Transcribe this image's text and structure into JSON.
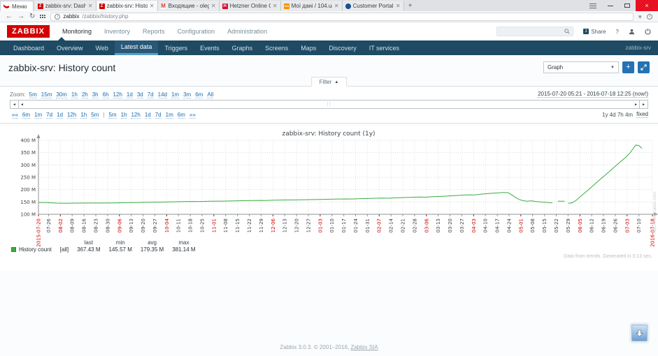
{
  "browser": {
    "menu_chip": "Меню",
    "tabs": [
      {
        "title": "zabbix-srv: Dashboard",
        "close": "✕"
      },
      {
        "title": "zabbix-srv: History [refresh",
        "close": "✕"
      },
      {
        "title": "Входящие - oleg.mch0@gm",
        "close": "✕"
      },
      {
        "title": "Hetzner Online GmbH - R",
        "close": "✕"
      },
      {
        "title": "Мої дані / 104.ua",
        "close": "✕"
      },
      {
        "title": "Customer Portal by LeaseW",
        "close": "✕"
      }
    ],
    "new_tab": "+",
    "back": "←",
    "forward": "→",
    "reload": "↻",
    "url_host": "zabbix",
    "url_path": "/zabbix/history.php",
    "close_window": "×"
  },
  "header": {
    "logo": "ZABBIX",
    "menu": [
      "Monitoring",
      "Inventory",
      "Reports",
      "Configuration",
      "Administration"
    ],
    "active_menu": "Monitoring",
    "share_label": "Share",
    "share_glyph": "z",
    "help_label": "?"
  },
  "subnav": {
    "items": [
      "Dashboard",
      "Overview",
      "Web",
      "Latest data",
      "Triggers",
      "Events",
      "Graphs",
      "Screens",
      "Maps",
      "Discovery",
      "IT services"
    ],
    "active_item": "Latest data",
    "host": "zabbix-srv"
  },
  "page": {
    "title": "zabbix-srv: History count",
    "view_select_value": "Graph",
    "add_button": "+",
    "filter_label": "Filter",
    "filter_caret": "▲"
  },
  "timebar": {
    "zoom_label": "Zoom:",
    "zoom_links": [
      "5m",
      "15m",
      "30m",
      "1h",
      "2h",
      "3h",
      "6h",
      "12h",
      "1d",
      "3d",
      "7d",
      "14d",
      "1m",
      "3m",
      "6m",
      "All"
    ],
    "range_link": "2015-07-20 05:21 - 2016-07-18 12:25 (now!)",
    "nav_left": [
      "««",
      "6m",
      "1m",
      "7d",
      "1d",
      "12h",
      "1h",
      "5m"
    ],
    "separator": "|",
    "nav_right": [
      "5m",
      "1h",
      "12h",
      "1d",
      "7d",
      "1m",
      "6m",
      "»»"
    ],
    "duration": "1y 4d 7h 4m",
    "fixed_label": "fixed",
    "scroll_left_arrow": "◄",
    "scroll_right_arrow": "►"
  },
  "chart_data": {
    "type": "line",
    "title": "zabbix-srv: History count (1y)",
    "y_unit": "M",
    "ylim": [
      100,
      400
    ],
    "grid": true,
    "legend_position": "bottom-left",
    "yticks": [
      {
        "v": 100,
        "label": "100 M"
      },
      {
        "v": 150,
        "label": "150 M"
      },
      {
        "v": 200,
        "label": "200 M"
      },
      {
        "v": 250,
        "label": "250 M"
      },
      {
        "v": 300,
        "label": "300 M"
      },
      {
        "v": 350,
        "label": "350 M"
      },
      {
        "v": 400,
        "label": "400 M"
      }
    ],
    "x_start_label": {
      "p": 0,
      "label": "2015-07-20",
      "red": true
    },
    "x_end_label": {
      "p": 100,
      "label": "2016-07-18",
      "red": true
    },
    "xticks": [
      {
        "p": 1.65,
        "label": "07-26",
        "red": false
      },
      {
        "p": 3.57,
        "label": "08-02",
        "red": true
      },
      {
        "p": 5.49,
        "label": "08-09",
        "red": false
      },
      {
        "p": 7.42,
        "label": "08-16",
        "red": false
      },
      {
        "p": 9.34,
        "label": "08-23",
        "red": false
      },
      {
        "p": 11.26,
        "label": "08-30",
        "red": false
      },
      {
        "p": 13.19,
        "label": "09-06",
        "red": true
      },
      {
        "p": 15.11,
        "label": "09-13",
        "red": false
      },
      {
        "p": 17.03,
        "label": "09-20",
        "red": false
      },
      {
        "p": 18.96,
        "label": "09-27",
        "red": false
      },
      {
        "p": 20.88,
        "label": "10-04",
        "red": true
      },
      {
        "p": 22.8,
        "label": "10-11",
        "red": false
      },
      {
        "p": 24.73,
        "label": "10-18",
        "red": false
      },
      {
        "p": 26.65,
        "label": "10-25",
        "red": false
      },
      {
        "p": 28.57,
        "label": "11-01",
        "red": true
      },
      {
        "p": 30.49,
        "label": "11-08",
        "red": false
      },
      {
        "p": 32.42,
        "label": "11-15",
        "red": false
      },
      {
        "p": 34.34,
        "label": "11-22",
        "red": false
      },
      {
        "p": 36.26,
        "label": "11-29",
        "red": false
      },
      {
        "p": 38.19,
        "label": "12-06",
        "red": true
      },
      {
        "p": 40.11,
        "label": "12-13",
        "red": false
      },
      {
        "p": 42.03,
        "label": "12-20",
        "red": false
      },
      {
        "p": 43.96,
        "label": "12-27",
        "red": false
      },
      {
        "p": 45.88,
        "label": "01-03",
        "red": true
      },
      {
        "p": 47.8,
        "label": "01-10",
        "red": false
      },
      {
        "p": 49.73,
        "label": "01-17",
        "red": false
      },
      {
        "p": 51.65,
        "label": "01-24",
        "red": false
      },
      {
        "p": 53.57,
        "label": "01-31",
        "red": false
      },
      {
        "p": 55.49,
        "label": "02-07",
        "red": true
      },
      {
        "p": 57.42,
        "label": "02-14",
        "red": false
      },
      {
        "p": 59.34,
        "label": "02-21",
        "red": false
      },
      {
        "p": 61.26,
        "label": "02-28",
        "red": false
      },
      {
        "p": 63.19,
        "label": "03-06",
        "red": true
      },
      {
        "p": 65.11,
        "label": "03-13",
        "red": false
      },
      {
        "p": 67.03,
        "label": "03-20",
        "red": false
      },
      {
        "p": 68.96,
        "label": "03-27",
        "red": false
      },
      {
        "p": 70.88,
        "label": "04-03",
        "red": true
      },
      {
        "p": 72.8,
        "label": "04-10",
        "red": false
      },
      {
        "p": 74.73,
        "label": "04-17",
        "red": false
      },
      {
        "p": 76.65,
        "label": "04-24",
        "red": false
      },
      {
        "p": 78.57,
        "label": "05-01",
        "red": true
      },
      {
        "p": 80.49,
        "label": "05-08",
        "red": false
      },
      {
        "p": 82.42,
        "label": "05-15",
        "red": false
      },
      {
        "p": 84.34,
        "label": "05-22",
        "red": false
      },
      {
        "p": 86.26,
        "label": "05-29",
        "red": false
      },
      {
        "p": 88.19,
        "label": "06-05",
        "red": true
      },
      {
        "p": 90.11,
        "label": "06-12",
        "red": false
      },
      {
        "p": 92.03,
        "label": "06-19",
        "red": false
      },
      {
        "p": 93.96,
        "label": "06-26",
        "red": false
      },
      {
        "p": 95.88,
        "label": "07-03",
        "red": true
      },
      {
        "p": 97.8,
        "label": "07-10",
        "red": false
      }
    ],
    "series": [
      {
        "name": "History count",
        "scope": "[all]",
        "color": "#3dab43",
        "stats": {
          "last": "367.43 M",
          "min": "145.57 M",
          "avg": "179.35 M",
          "max": "381.14 M"
        },
        "segments": [
          [
            [
              0,
              148
            ],
            [
              1.5,
              147.2
            ],
            [
              3,
              145.2
            ],
            [
              4.5,
              144.6
            ],
            [
              6,
              145.3
            ],
            [
              8,
              145.6
            ],
            [
              10,
              145.6
            ],
            [
              12,
              146
            ],
            [
              14,
              147
            ],
            [
              16,
              147.8
            ],
            [
              18,
              148.6
            ],
            [
              20,
              149.6
            ],
            [
              22,
              150.6
            ],
            [
              24,
              151.4
            ],
            [
              25,
              152.2
            ],
            [
              26,
              151.8
            ],
            [
              28,
              152.8
            ],
            [
              30,
              153.6
            ],
            [
              32,
              154.4
            ],
            [
              34,
              155.4
            ],
            [
              36,
              156.4
            ],
            [
              37,
              155.9
            ],
            [
              38,
              157
            ],
            [
              40,
              158
            ],
            [
              42,
              158.4
            ],
            [
              44,
              159.4
            ],
            [
              46,
              160.4
            ],
            [
              48,
              161.6
            ],
            [
              50,
              162.4
            ],
            [
              51,
              161.9
            ],
            [
              52,
              163
            ],
            [
              54,
              164.2
            ],
            [
              56,
              165.6
            ],
            [
              57,
              165.1
            ],
            [
              58,
              166.6
            ],
            [
              60,
              168.2
            ],
            [
              62,
              170
            ],
            [
              63,
              169.4
            ],
            [
              64,
              171
            ],
            [
              66,
              173.4
            ],
            [
              68,
              176
            ],
            [
              70,
              179
            ],
            [
              71,
              178.4
            ],
            [
              72,
              181.4
            ],
            [
              73,
              183.4
            ],
            [
              74,
              185.6
            ],
            [
              75,
              187.2
            ],
            [
              75.8,
              188.2
            ],
            [
              76.5,
              187.6
            ],
            [
              77.2,
              177
            ],
            [
              77.8,
              167
            ],
            [
              78.4,
              159
            ],
            [
              79,
              155
            ],
            [
              79.6,
              153
            ],
            [
              80.3,
              154.6
            ],
            [
              81,
              152
            ],
            [
              81.7,
              150
            ],
            [
              82.4,
              148.6
            ],
            [
              83.1,
              147.4
            ],
            [
              83.7,
              146.8
            ]
          ],
          [
            [
              84.6,
              153.4
            ],
            [
              85.7,
              152.6
            ]
          ],
          [
            [
              86.3,
              144.8
            ],
            [
              86.9,
              146.4
            ],
            [
              87.6,
              157
            ],
            [
              88.6,
              179
            ],
            [
              89.6,
              200
            ],
            [
              90.6,
              222
            ],
            [
              91.6,
              244
            ],
            [
              92.6,
              265
            ],
            [
              93.6,
              287
            ],
            [
              94.6,
              309
            ],
            [
              95.6,
              330
            ],
            [
              96.4,
              350
            ],
            [
              97,
              372
            ],
            [
              97.3,
              381.1
            ],
            [
              97.8,
              378.5
            ],
            [
              98.3,
              367.4
            ]
          ]
        ]
      }
    ],
    "legend_headers": [
      "last",
      "min",
      "avg",
      "max"
    ],
    "gen_info": "Data from trends. Generated in 0.13 sec.",
    "watermark": "http://www.zabbix.com"
  },
  "footer": {
    "prefix": "Zabbix 3.0.3. © 2001–2016, ",
    "link": "Zabbix SIA"
  }
}
